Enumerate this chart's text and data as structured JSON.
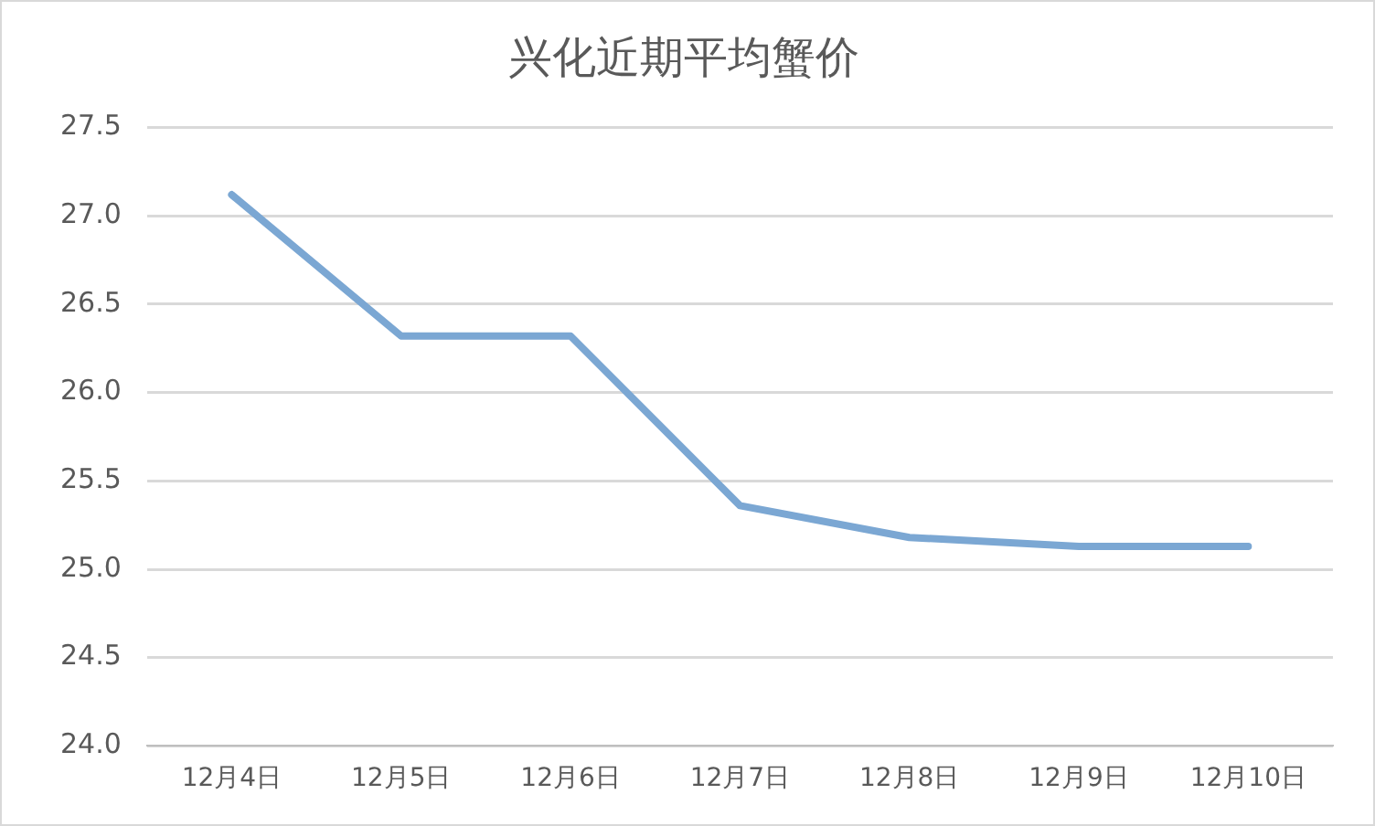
{
  "chart_data": {
    "type": "line",
    "title": "兴化近期平均蟹价",
    "categories": [
      "12月4日",
      "12月5日",
      "12月6日",
      "12月7日",
      "12月8日",
      "12月9日",
      "12月10日"
    ],
    "series": [
      {
        "color": "#7ba7d3",
        "values": [
          27.12,
          26.32,
          26.32,
          25.36,
          25.18,
          25.13,
          25.13
        ]
      }
    ],
    "ylim": [
      24.0,
      27.5
    ],
    "yticks": [
      {
        "value": 24,
        "label": "24.0"
      },
      {
        "value": 24.5,
        "label": "24.5"
      },
      {
        "value": 25,
        "label": "25.0"
      },
      {
        "value": 25.5,
        "label": "25.5"
      },
      {
        "value": 26,
        "label": "26.0"
      },
      {
        "value": 26.5,
        "label": "26.5"
      },
      {
        "value": 27,
        "label": "27.0"
      },
      {
        "value": 27.5,
        "label": "27.5"
      }
    ],
    "grid": "y",
    "legend": false,
    "marker": "none",
    "line_style": "solid"
  }
}
